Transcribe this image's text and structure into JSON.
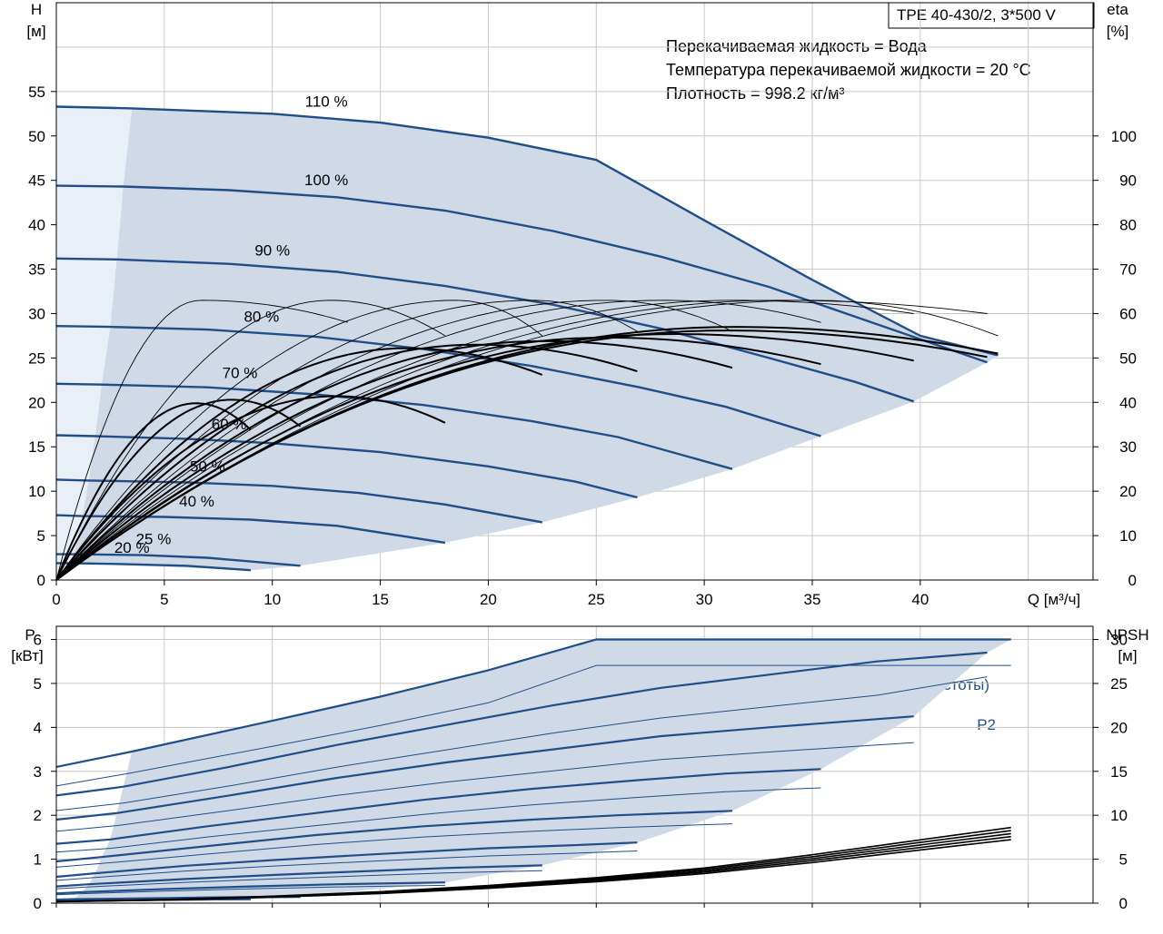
{
  "chart_data": [
    {
      "type": "line",
      "title_box": "TPE 40-430/2, 3*500 V",
      "info_lines": [
        "Перекачиваемая жидкость = Вода",
        "Температура перекачиваемой жидкости = 20 °C",
        "Плотность = 998.2 кг/м³"
      ],
      "xlabel": "Q [м³/ч]",
      "ylabel_left": "H",
      "ylabel_left_unit": "[м]",
      "ylabel_right": "eta",
      "ylabel_right_unit": "[%]",
      "xlim": [
        0,
        48
      ],
      "ylim_left": [
        0,
        65
      ],
      "ylim_right": [
        0,
        130
      ],
      "x_ticks": [
        "0",
        "5",
        "10",
        "15",
        "20",
        "25",
        "30",
        "35",
        "40"
      ],
      "y_ticks_left": [
        "0",
        "5",
        "10",
        "15",
        "20",
        "25",
        "30",
        "35",
        "40",
        "45",
        "50",
        "55"
      ],
      "y_ticks_right": [
        "0",
        "10",
        "20",
        "30",
        "40",
        "50",
        "60",
        "70",
        "80",
        "90",
        "100"
      ],
      "grid": true,
      "operating_area_color": "#cfdae6",
      "min_speed_area_color": "#e8eff7",
      "curve_color": "#1f4e89",
      "eta_color": "#000000",
      "head_curves": [
        {
          "name": "110 %",
          "points": [
            [
              0,
              53.3
            ],
            [
              3.5,
              53.1
            ],
            [
              10,
              52.5
            ],
            [
              15,
              51.5
            ],
            [
              20,
              49.8
            ],
            [
              25,
              47.3
            ],
            [
              30,
              40.5
            ],
            [
              35,
              33.8
            ],
            [
              40,
              27.5
            ],
            [
              43.6,
              25.3
            ]
          ]
        },
        {
          "name": "100 %",
          "points": [
            [
              0,
              44.4
            ],
            [
              3.1,
              44.3
            ],
            [
              8,
              43.9
            ],
            [
              13,
              43.1
            ],
            [
              18,
              41.6
            ],
            [
              23,
              39.3
            ],
            [
              28,
              36.4
            ],
            [
              33,
              33.0
            ],
            [
              38,
              28.8
            ],
            [
              43.1,
              24.5
            ]
          ]
        },
        {
          "name": "90 %",
          "points": [
            [
              0,
              36.2
            ],
            [
              2.8,
              36.1
            ],
            [
              8,
              35.6
            ],
            [
              13,
              34.7
            ],
            [
              18,
              33.1
            ],
            [
              23,
              31.0
            ],
            [
              28,
              28.3
            ],
            [
              33,
              25.0
            ],
            [
              37,
              22.3
            ],
            [
              39.7,
              20.1
            ]
          ]
        },
        {
          "name": "80 %",
          "points": [
            [
              0,
              28.6
            ],
            [
              2.5,
              28.5
            ],
            [
              7,
              28.2
            ],
            [
              12,
              27.4
            ],
            [
              17,
              26.0
            ],
            [
              22,
              24.1
            ],
            [
              27,
              21.7
            ],
            [
              31,
              19.5
            ],
            [
              35.4,
              16.2
            ]
          ]
        },
        {
          "name": "70 %",
          "points": [
            [
              0,
              22.1
            ],
            [
              2.1,
              22.0
            ],
            [
              7,
              21.7
            ],
            [
              12,
              20.9
            ],
            [
              17,
              19.7
            ],
            [
              22,
              17.9
            ],
            [
              26,
              16.1
            ],
            [
              31.3,
              12.5
            ]
          ]
        },
        {
          "name": "60 %",
          "points": [
            [
              0,
              16.3
            ],
            [
              1.8,
              16.2
            ],
            [
              6,
              15.9
            ],
            [
              10,
              15.4
            ],
            [
              15,
              14.4
            ],
            [
              20,
              12.8
            ],
            [
              24,
              11.1
            ],
            [
              26.9,
              9.3
            ]
          ]
        },
        {
          "name": "50 %",
          "points": [
            [
              0,
              11.3
            ],
            [
              1.5,
              11.2
            ],
            [
              6,
              11.0
            ],
            [
              10,
              10.6
            ],
            [
              14,
              9.8
            ],
            [
              18,
              8.5
            ],
            [
              22.5,
              6.5
            ]
          ]
        },
        {
          "name": "40 %",
          "points": [
            [
              0,
              7.3
            ],
            [
              1.2,
              7.2
            ],
            [
              5,
              7.1
            ],
            [
              9,
              6.8
            ],
            [
              13,
              6.1
            ],
            [
              18,
              4.2
            ]
          ]
        },
        {
          "name": "25 %",
          "points": [
            [
              0,
              2.9
            ],
            [
              0.8,
              2.9
            ],
            [
              4,
              2.8
            ],
            [
              7,
              2.5
            ],
            [
              11.3,
              1.6
            ]
          ]
        },
        {
          "name": "20 %",
          "points": [
            [
              0,
              1.9
            ],
            [
              0.6,
              1.9
            ],
            [
              3,
              1.8
            ],
            [
              6,
              1.6
            ],
            [
              9,
              1.1
            ]
          ]
        }
      ],
      "eta_curves": {
        "peak": 63,
        "peak_q": [
          6.7,
          12.7,
          18.5,
          22.1,
          25.5,
          28.1,
          31.4,
          33.5,
          35.1
        ],
        "end_q": [
          9.0,
          11.3,
          13.5,
          18.0,
          22.5,
          26.9,
          31.3,
          35.4,
          39.7,
          43.1,
          43.6
        ],
        "end_eta": [
          54,
          56,
          58,
          55,
          55,
          56,
          56,
          58,
          60,
          60,
          55
        ]
      }
    },
    {
      "type": "line",
      "ylabel_left": "P",
      "ylabel_left_unit": "[кВт]",
      "ylabel_right": "NPSH",
      "ylabel_right_unit": "[м]",
      "xlim": [
        0,
        48
      ],
      "ylim_left": [
        0,
        6.3
      ],
      "ylim_right": [
        0,
        31.5
      ],
      "y_ticks_left": [
        "0",
        "1",
        "2",
        "3",
        "4",
        "5",
        "6"
      ],
      "y_ticks_right": [
        "0",
        "5",
        "10",
        "15",
        "20",
        "25",
        "30"
      ],
      "grid": true,
      "label_p1": "P1 (двиг.+преобр-ль частоты)",
      "label_p2": "P2",
      "p1_curves": [
        {
          "name": "110 %",
          "points": [
            [
              0,
              3.1
            ],
            [
              3.5,
              3.45
            ],
            [
              10,
              4.15
            ],
            [
              15,
              4.7
            ],
            [
              20,
              5.3
            ],
            [
              25,
              6.0
            ],
            [
              30,
              6.0
            ],
            [
              35,
              6.0
            ],
            [
              40,
              6.0
            ],
            [
              44.2,
              6.0
            ]
          ]
        },
        {
          "name": "100 %",
          "points": [
            [
              0,
              2.45
            ],
            [
              3.1,
              2.65
            ],
            [
              8,
              3.1
            ],
            [
              13,
              3.6
            ],
            [
              18,
              4.05
            ],
            [
              23,
              4.5
            ],
            [
              28,
              4.9
            ],
            [
              33,
              5.2
            ],
            [
              38,
              5.5
            ],
            [
              43.1,
              5.7
            ]
          ]
        },
        {
          "name": "90 %",
          "points": [
            [
              0,
              1.9
            ],
            [
              2.8,
              2.05
            ],
            [
              8,
              2.45
            ],
            [
              13,
              2.85
            ],
            [
              18,
              3.2
            ],
            [
              23,
              3.5
            ],
            [
              28,
              3.8
            ],
            [
              33,
              4.0
            ],
            [
              39.7,
              4.25
            ]
          ]
        },
        {
          "name": "80 %",
          "points": [
            [
              0,
              1.35
            ],
            [
              2.5,
              1.45
            ],
            [
              7,
              1.75
            ],
            [
              12,
              2.05
            ],
            [
              17,
              2.35
            ],
            [
              22,
              2.6
            ],
            [
              27,
              2.8
            ],
            [
              31,
              2.95
            ],
            [
              35.4,
              3.05
            ]
          ]
        },
        {
          "name": "70 %",
          "points": [
            [
              0,
              0.95
            ],
            [
              2.1,
              1.05
            ],
            [
              7,
              1.3
            ],
            [
              12,
              1.55
            ],
            [
              17,
              1.75
            ],
            [
              22,
              1.9
            ],
            [
              26,
              2.0
            ],
            [
              31.3,
              2.1
            ]
          ]
        },
        {
          "name": "60 %",
          "points": [
            [
              0,
              0.6
            ],
            [
              1.8,
              0.68
            ],
            [
              6,
              0.85
            ],
            [
              10,
              0.98
            ],
            [
              15,
              1.12
            ],
            [
              20,
              1.25
            ],
            [
              24,
              1.32
            ],
            [
              26.9,
              1.38
            ]
          ]
        },
        {
          "name": "50 %",
          "points": [
            [
              0,
              0.38
            ],
            [
              1.5,
              0.43
            ],
            [
              6,
              0.55
            ],
            [
              10,
              0.64
            ],
            [
              14,
              0.72
            ],
            [
              18,
              0.8
            ],
            [
              22.5,
              0.86
            ]
          ]
        },
        {
          "name": "40 %",
          "points": [
            [
              0,
              0.22
            ],
            [
              1.2,
              0.25
            ],
            [
              5,
              0.32
            ],
            [
              9,
              0.38
            ],
            [
              13,
              0.43
            ],
            [
              18,
              0.47
            ]
          ]
        },
        {
          "name": "25 %",
          "points": [
            [
              0,
              0.08
            ],
            [
              0.8,
              0.09
            ],
            [
              4,
              0.11
            ],
            [
              7,
              0.13
            ],
            [
              11.3,
              0.15
            ]
          ]
        },
        {
          "name": "20 %",
          "points": [
            [
              0,
              0.05
            ],
            [
              0.6,
              0.06
            ],
            [
              3,
              0.07
            ],
            [
              6,
              0.08
            ],
            [
              9,
              0.09
            ]
          ]
        }
      ],
      "p2_ratio": 0.86,
      "npsh_curves": [
        {
          "name": "NPSH",
          "points": [
            [
              0,
              0.2
            ],
            [
              5,
              0.4
            ],
            [
              10,
              0.8
            ],
            [
              15,
              1.3
            ],
            [
              20,
              2.0
            ],
            [
              25,
              2.9
            ],
            [
              30,
              4.0
            ],
            [
              35,
              5.5
            ],
            [
              40,
              7.2
            ],
            [
              44.2,
              8.6
            ]
          ]
        }
      ]
    }
  ]
}
